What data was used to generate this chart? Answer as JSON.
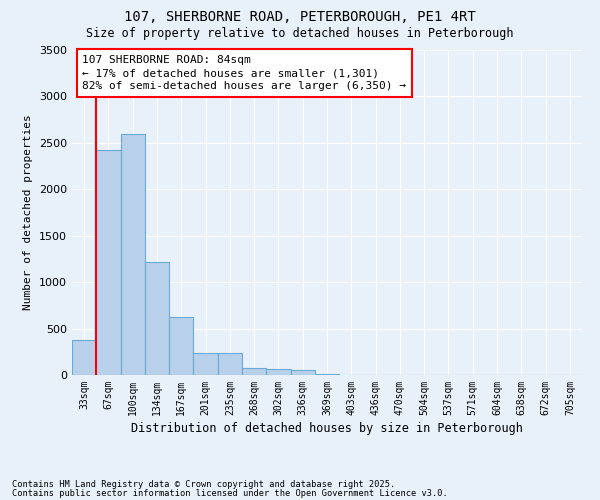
{
  "title_line1": "107, SHERBORNE ROAD, PETERBOROUGH, PE1 4RT",
  "title_line2": "Size of property relative to detached houses in Peterborough",
  "xlabel": "Distribution of detached houses by size in Peterborough",
  "ylabel": "Number of detached properties",
  "footnote1": "Contains HM Land Registry data © Crown copyright and database right 2025.",
  "footnote2": "Contains public sector information licensed under the Open Government Licence v3.0.",
  "annotation_line1": "107 SHERBORNE ROAD: 84sqm",
  "annotation_line2": "← 17% of detached houses are smaller (1,301)",
  "annotation_line3": "82% of semi-detached houses are larger (6,350) →",
  "bar_color": "#b8d0ea",
  "bar_edge_color": "#6aaad4",
  "bar_values": [
    380,
    2420,
    2600,
    1220,
    620,
    240,
    240,
    80,
    60,
    50,
    10,
    5,
    0,
    0,
    0,
    0,
    0,
    0,
    0,
    0,
    0
  ],
  "bin_labels": [
    "33sqm",
    "67sqm",
    "100sqm",
    "134sqm",
    "167sqm",
    "201sqm",
    "235sqm",
    "268sqm",
    "302sqm",
    "336sqm",
    "369sqm",
    "403sqm",
    "436sqm",
    "470sqm",
    "504sqm",
    "537sqm",
    "571sqm",
    "604sqm",
    "638sqm",
    "672sqm",
    "705sqm"
  ],
  "ylim": [
    0,
    3500
  ],
  "yticks": [
    0,
    500,
    1000,
    1500,
    2000,
    2500,
    3000,
    3500
  ],
  "property_line_x": 1.0,
  "bg_color": "#e8f0fa",
  "grid_color": "#ffffff"
}
